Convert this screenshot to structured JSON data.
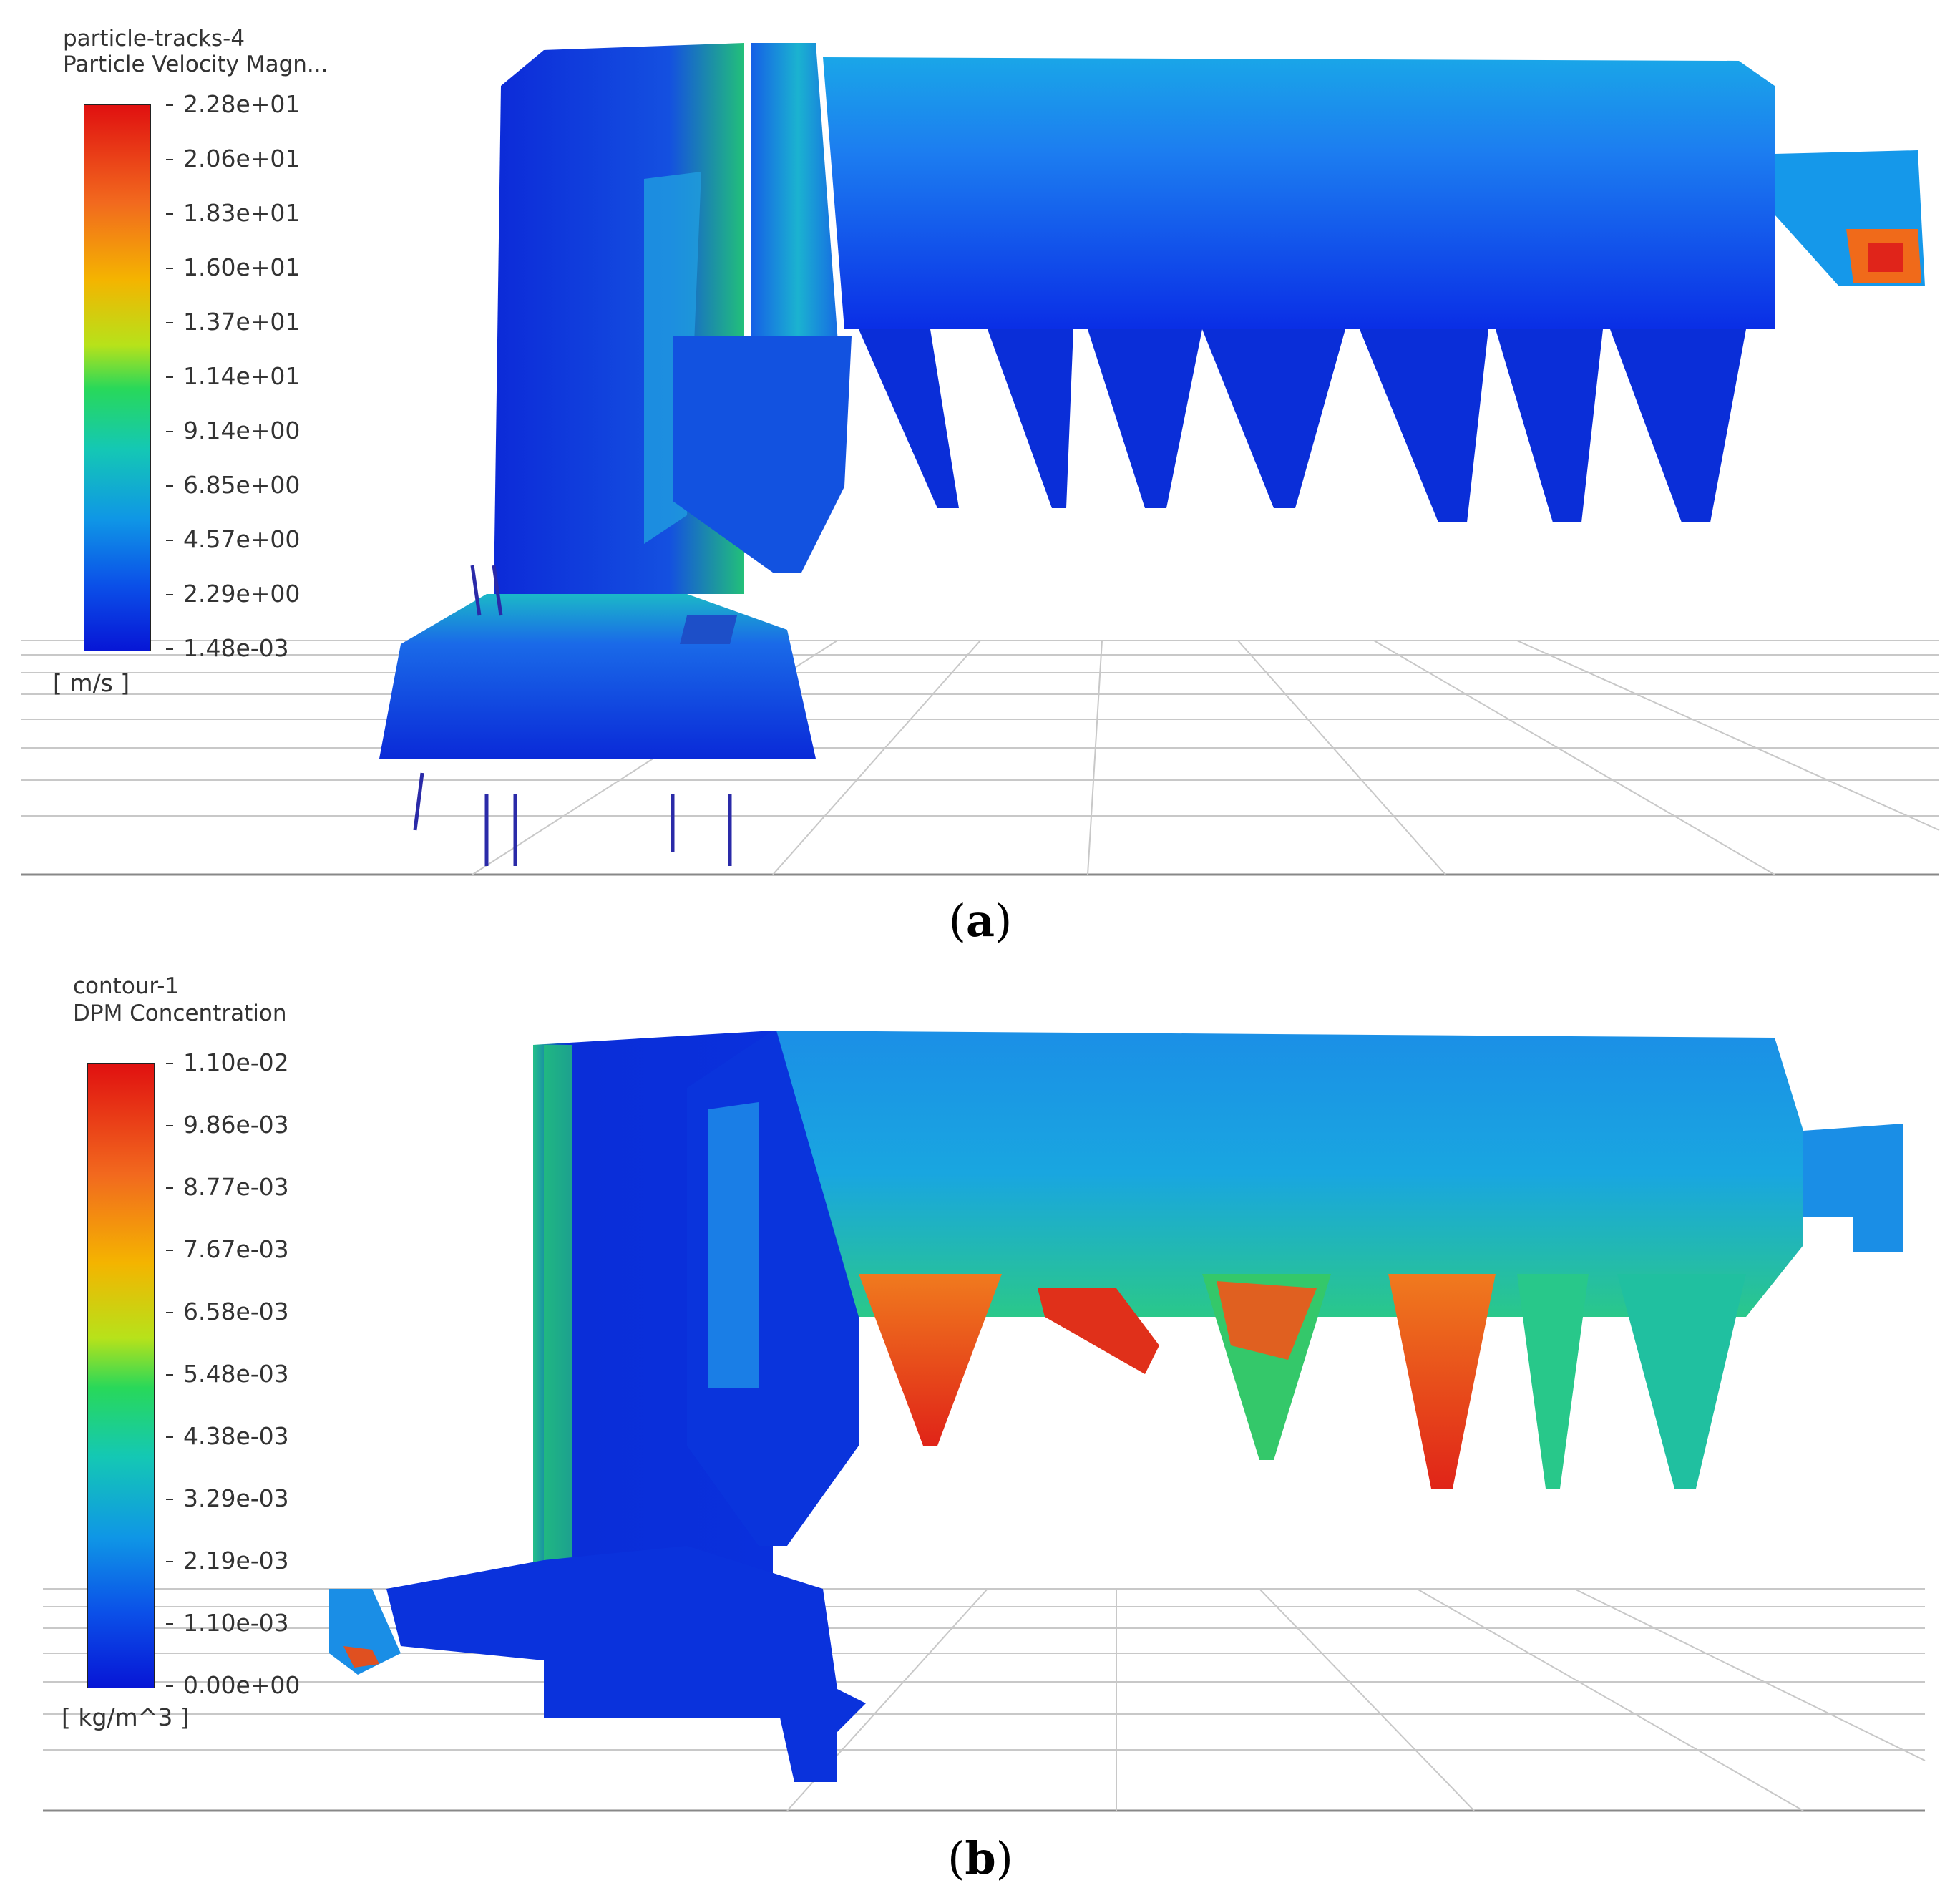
{
  "panel_a": {
    "legend": {
      "name": "particle-tracks-4",
      "variable": "Particle Velocity Magn...",
      "ticks": [
        "2.28e+01",
        "2.06e+01",
        "1.83e+01",
        "1.60e+01",
        "1.37e+01",
        "1.14e+01",
        "9.14e+00",
        "6.85e+00",
        "4.57e+00",
        "2.29e+00",
        "1.48e-03"
      ],
      "unit": "[ m/s ]"
    },
    "caption": "a"
  },
  "panel_b": {
    "legend": {
      "name": "contour-1",
      "variable": "DPM Concentration",
      "ticks": [
        "1.10e-02",
        "9.86e-03",
        "8.77e-03",
        "7.67e-03",
        "6.58e-03",
        "5.48e-03",
        "4.38e-03",
        "3.29e-03",
        "2.19e-03",
        "1.10e-03",
        "0.00e+00"
      ],
      "unit": "[ kg/m^3 ]"
    },
    "caption": "b"
  },
  "colors": {
    "high": "#e01010",
    "mid": "#28d85a",
    "low": "#0716d6",
    "floor_grid": "#c8c8c8"
  }
}
